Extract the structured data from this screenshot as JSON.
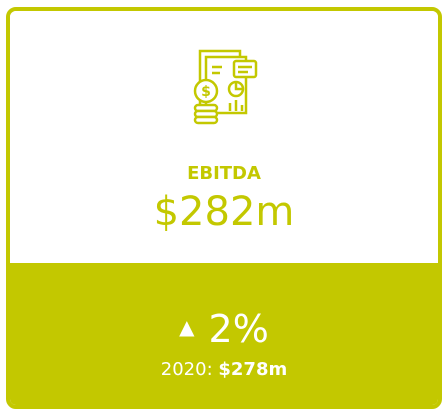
{
  "card": {
    "label": "EBITDA",
    "value": "$282m",
    "change": "2%",
    "compare_label": "2020:",
    "compare_value": "$278m"
  }
}
